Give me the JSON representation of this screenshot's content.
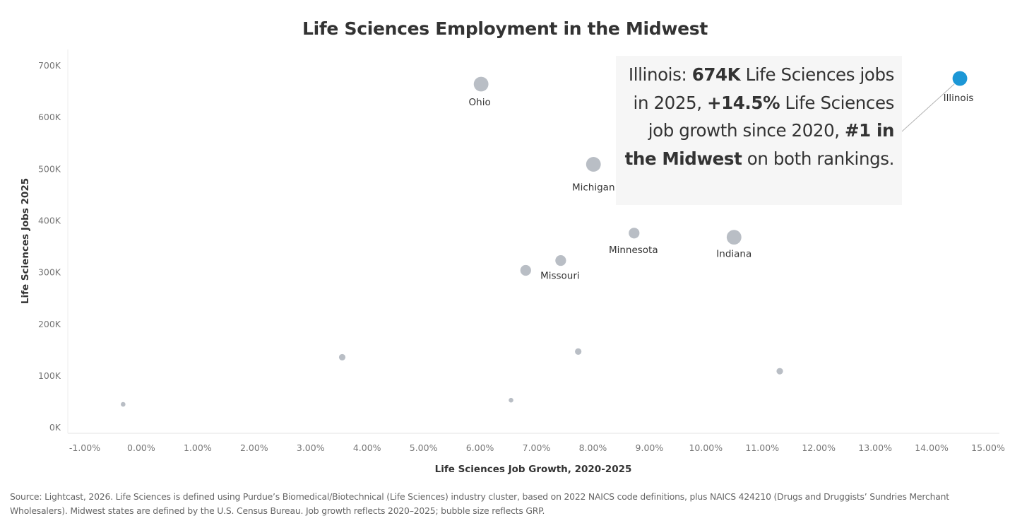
{
  "chart_data": {
    "type": "scatter",
    "title": "Life Sciences Employment in the Midwest",
    "xlabel": "Life Sciences Job Growth, 2020-2025",
    "ylabel": "Life Sciences Jobs 2025",
    "x_unit": "percent",
    "xlim": [
      -1.3,
      15.2
    ],
    "ylim": [
      -12000,
      730000
    ],
    "x_ticks": [
      -1,
      0,
      1,
      2,
      3,
      4,
      5,
      6,
      7,
      8,
      9,
      10,
      11,
      12,
      13,
      14,
      15
    ],
    "x_tick_labels": [
      "-1.00%",
      "0.00%",
      "1.00%",
      "2.00%",
      "3.00%",
      "4.00%",
      "5.00%",
      "6.00%",
      "7.00%",
      "8.00%",
      "9.00%",
      "10.00%",
      "11.00%",
      "12.00%",
      "13.00%",
      "14.00%",
      "15.00%"
    ],
    "y_ticks": [
      0,
      100000,
      200000,
      300000,
      400000,
      500000,
      600000,
      700000
    ],
    "y_tick_labels": [
      "0K",
      "100K",
      "200K",
      "300K",
      "400K",
      "500K",
      "600K",
      "700K"
    ],
    "grid": false,
    "size_encoding": "GRP",
    "points": [
      {
        "label": "Ohio",
        "x": 6.02,
        "y": 663000,
        "size": "large",
        "highlight": false
      },
      {
        "label": "Michigan",
        "x": 8.01,
        "y": 508000,
        "size": "large",
        "highlight": false
      },
      {
        "label": "Minnesota",
        "x": 8.73,
        "y": 375000,
        "size": "medium",
        "highlight": false
      },
      {
        "label": "Indiana",
        "x": 10.5,
        "y": 367000,
        "size": "large",
        "highlight": false
      },
      {
        "label": "Missouri",
        "x": 7.43,
        "y": 322000,
        "size": "medium",
        "highlight": false
      },
      {
        "label": "",
        "x": 6.81,
        "y": 303000,
        "size": "medium",
        "highlight": false
      },
      {
        "label": "",
        "x": 3.56,
        "y": 135000,
        "size": "small",
        "highlight": false
      },
      {
        "label": "",
        "x": 7.74,
        "y": 146000,
        "size": "small",
        "highlight": false
      },
      {
        "label": "",
        "x": 11.31,
        "y": 108000,
        "size": "small",
        "highlight": false
      },
      {
        "label": "",
        "x": 6.55,
        "y": 52000,
        "size": "tiny",
        "highlight": false
      },
      {
        "label": "",
        "x": -0.32,
        "y": 44000,
        "size": "tiny",
        "highlight": false
      },
      {
        "label": "Illinois",
        "x": 14.5,
        "y": 674000,
        "size": "large",
        "highlight": true
      }
    ],
    "colors": {
      "default_point": "#b9bec5",
      "highlight_point": "#1c97d6",
      "axis_text": "#777777",
      "axis_title": "#333333"
    }
  },
  "callout": {
    "t1": "Illinois: ",
    "t2": "674K",
    "t3": " Life Sciences jobs in 2025, ",
    "t4": "+14.5%",
    "t5": " Life Sciences job growth since 2020, ",
    "t6": "#1 in the Midwest",
    "t7": " on both rankings."
  },
  "source_note": "Source: Lightcast, 2026. Life Sciences is defined using Purdue’s Biomedical/Biotechnical (Life Sciences) industry cluster, based on 2022 NAICS code definitions, plus NAICS 424210 (Drugs and Druggists’ Sundries Merchant Wholesalers). Midwest states are defined by the U.S. Census Bureau. Job growth reflects 2020–2025; bubble size reflects GRP."
}
